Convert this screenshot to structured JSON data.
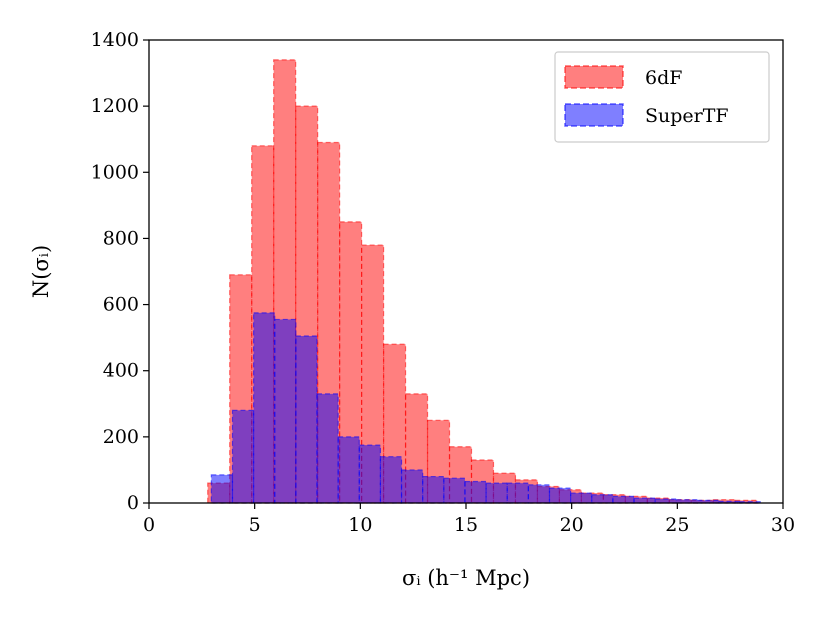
{
  "chart_data": {
    "type": "histogram",
    "title": "",
    "xlabel": "σᵢ (h⁻¹ Mpc)",
    "ylabel": "N(σᵢ)",
    "xlim": [
      0,
      30
    ],
    "ylim": [
      0,
      1400
    ],
    "xticks": [
      "0",
      "5",
      "10",
      "15",
      "20",
      "25",
      "30"
    ],
    "yticks": [
      "0",
      "200",
      "400",
      "600",
      "800",
      "1000",
      "1200",
      "1400"
    ],
    "legend_position": "top-right",
    "series": [
      {
        "name": "6dF",
        "color": "#ff0000",
        "bin_edges": [
          2.78,
          3.82,
          4.86,
          5.9,
          6.94,
          7.98,
          9.02,
          10.06,
          11.1,
          12.14,
          13.18,
          14.22,
          15.26,
          16.3,
          17.34,
          18.38,
          19.42,
          20.46,
          21.5,
          22.54,
          23.58,
          24.62,
          25.66,
          26.7,
          27.74,
          28.78
        ],
        "counts": [
          60,
          690,
          1080,
          1340,
          1200,
          1090,
          850,
          780,
          480,
          330,
          250,
          170,
          130,
          90,
          70,
          50,
          40,
          30,
          25,
          20,
          15,
          10,
          8,
          10,
          8
        ]
      },
      {
        "name": "SuperTF",
        "color": "#0000ff",
        "bin_edges": [
          2.95,
          3.95,
          4.95,
          5.95,
          6.95,
          7.95,
          8.95,
          9.95,
          10.95,
          11.95,
          12.95,
          13.95,
          14.95,
          15.95,
          16.95,
          17.95,
          18.95,
          19.95,
          20.95,
          21.95,
          22.95,
          23.95,
          24.95,
          25.95,
          26.95,
          27.95,
          28.95
        ],
        "counts": [
          85,
          280,
          575,
          555,
          505,
          330,
          200,
          175,
          140,
          100,
          80,
          75,
          65,
          60,
          60,
          55,
          45,
          30,
          25,
          20,
          15,
          12,
          10,
          8,
          5,
          4
        ]
      }
    ]
  }
}
